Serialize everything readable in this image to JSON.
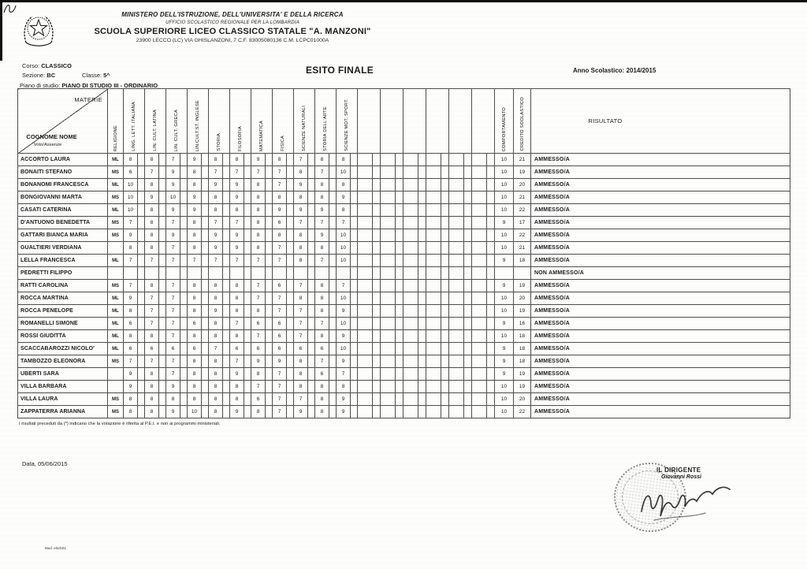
{
  "header": {
    "ministry": "MINISTERO DELL'ISTRUZIONE, DELL'UNIVERSITA' E DELLA RICERCA",
    "office": "UFFICIO SCOLASTICO REGIONALE PER LA LOMBARDIA",
    "school": "SCUOLA SUPERIORE LICEO CLASSICO STATALE \"A. MANZONI\"",
    "address": "23900 LECCO (LC) VIA GHISLANZONI, 7 C.F. 83005080136 C.M. LCPC01000A"
  },
  "info": {
    "corso_label": "Corso:",
    "corso": "CLASSICO",
    "sezione_label": "Sezione:",
    "sezione": "BC",
    "classe_label": "Classe:",
    "classe": "5^",
    "piano_label": "Piano di studio:",
    "piano": "PIANO DI STUDIO III - ORDINARIO",
    "title": "ESITO FINALE",
    "anno_label": "Anno Scolastico:",
    "anno": "2014/2015"
  },
  "table": {
    "corner": {
      "top": "MATERIE",
      "bottom": "COGNOME NOME",
      "sub": "Voto/Assenze"
    },
    "subjects": [
      "RELIGIONE",
      "LING. LETT. ITALIANA",
      "LIN. CULT. LATINA",
      "LIN. CULT. GRECA",
      "LIN.CULT.ST. INGLESE",
      "STORIA",
      "FILOSOFIA",
      "MATEMATICA",
      "FISICA",
      "SCIENZE NATURALI",
      "STORIA DELL'ARTE",
      "SCIENZE MOT. SPORT."
    ],
    "comportamento_header": "COMPORTAMENTO",
    "credito_header": "CREDITO SCOLASTICO",
    "risultato_header": "RISULTATO",
    "rows": [
      {
        "name": "ACCORTO LAURA",
        "religione": "ML",
        "grades": [
          "8",
          "8",
          "7",
          "9",
          "8",
          "8",
          "9",
          "8",
          "7",
          "8",
          "8"
        ],
        "comportamento": "10",
        "credito": "21",
        "risultato": "AMMESSO/A"
      },
      {
        "name": "BONAITI STEFANO",
        "religione": "MS",
        "grades": [
          "6",
          "7",
          "9",
          "8",
          "7",
          "7",
          "7",
          "7",
          "8",
          "7",
          "10"
        ],
        "comportamento": "10",
        "credito": "19",
        "risultato": "AMMESSO/A"
      },
      {
        "name": "BONANOMI FRANCESCA",
        "religione": "ML",
        "grades": [
          "10",
          "8",
          "9",
          "8",
          "9",
          "9",
          "8",
          "7",
          "9",
          "8",
          "8"
        ],
        "comportamento": "10",
        "credito": "20",
        "risultato": "AMMESSO/A"
      },
      {
        "name": "BONGIOVANNI MARTA",
        "religione": "MS",
        "grades": [
          "10",
          "9",
          "10",
          "9",
          "8",
          "9",
          "8",
          "8",
          "8",
          "8",
          "9"
        ],
        "comportamento": "10",
        "credito": "21",
        "risultato": "AMMESSO/A"
      },
      {
        "name": "CASATI CATERINA",
        "religione": "ML",
        "grades": [
          "10",
          "8",
          "9",
          "9",
          "8",
          "8",
          "8",
          "9",
          "9",
          "9",
          "8"
        ],
        "comportamento": "10",
        "credito": "22",
        "risultato": "AMMESSO/A"
      },
      {
        "name": "D'ANTUONO BENEDETTA",
        "religione": "MS",
        "grades": [
          "7",
          "8",
          "7",
          "8",
          "7",
          "7",
          "8",
          "6",
          "7",
          "7",
          "7"
        ],
        "comportamento": "9",
        "credito": "17",
        "risultato": "AMMESSO/A"
      },
      {
        "name": "GATTARI BIANCA MARIA",
        "religione": "MS",
        "grades": [
          "9",
          "8",
          "9",
          "8",
          "9",
          "9",
          "8",
          "8",
          "8",
          "9",
          "10"
        ],
        "comportamento": "10",
        "credito": "22",
        "risultato": "AMMESSO/A"
      },
      {
        "name": "GUALTIERI VERDIANA",
        "religione": "",
        "grades": [
          "8",
          "8",
          "7",
          "8",
          "9",
          "9",
          "8",
          "7",
          "8",
          "8",
          "10"
        ],
        "comportamento": "10",
        "credito": "21",
        "risultato": "AMMESSO/A"
      },
      {
        "name": "LELLA FRANCESCA",
        "religione": "ML",
        "grades": [
          "7",
          "7",
          "7",
          "7",
          "7",
          "7",
          "7",
          "7",
          "8",
          "7",
          "10"
        ],
        "comportamento": "9",
        "credito": "18",
        "risultato": "AMMESSO/A"
      },
      {
        "name": "PEDRETTI FILIPPO",
        "religione": "",
        "grades": [
          "",
          "",
          "",
          "",
          "",
          "",
          "",
          "",
          "",
          "",
          ""
        ],
        "comportamento": "",
        "credito": "",
        "risultato": "NON AMMESSO/A"
      },
      {
        "name": "RATTI CAROLINA",
        "religione": "MS",
        "grades": [
          "7",
          "8",
          "7",
          "8",
          "8",
          "8",
          "7",
          "6",
          "7",
          "8",
          "7"
        ],
        "comportamento": "9",
        "credito": "19",
        "risultato": "AMMESSO/A"
      },
      {
        "name": "ROCCA MARTINA",
        "religione": "ML",
        "grades": [
          "9",
          "7",
          "7",
          "8",
          "8",
          "8",
          "7",
          "7",
          "8",
          "8",
          "10"
        ],
        "comportamento": "10",
        "credito": "20",
        "risultato": "AMMESSO/A"
      },
      {
        "name": "ROCCA PENELOPE",
        "religione": "ML",
        "grades": [
          "8",
          "7",
          "7",
          "8",
          "9",
          "8",
          "8",
          "7",
          "7",
          "8",
          "9"
        ],
        "comportamento": "10",
        "credito": "19",
        "risultato": "AMMESSO/A"
      },
      {
        "name": "ROMANELLI SIMONE",
        "religione": "ML",
        "grades": [
          "6",
          "7",
          "7",
          "6",
          "8",
          "7",
          "6",
          "6",
          "7",
          "7",
          "10"
        ],
        "comportamento": "9",
        "credito": "16",
        "risultato": "AMMESSO/A"
      },
      {
        "name": "ROSSI GIUDITTA",
        "religione": "ML",
        "grades": [
          "8",
          "8",
          "7",
          "8",
          "8",
          "8",
          "7",
          "6",
          "7",
          "8",
          "9"
        ],
        "comportamento": "10",
        "credito": "18",
        "risultato": "AMMESSO/A"
      },
      {
        "name": "SCACCABAROZZI NICOLO'",
        "religione": "ML",
        "grades": [
          "6",
          "6",
          "6",
          "6",
          "7",
          "6",
          "6",
          "6",
          "6",
          "6",
          "10"
        ],
        "comportamento": "9",
        "credito": "18",
        "risultato": "AMMESSO/A"
      },
      {
        "name": "TAMBOZZO ELEONORA",
        "religione": "MS",
        "grades": [
          "7",
          "7",
          "7",
          "8",
          "8",
          "7",
          "9",
          "9",
          "8",
          "7",
          "9"
        ],
        "comportamento": "9",
        "credito": "18",
        "risultato": "AMMESSO/A"
      },
      {
        "name": "UBERTI SARA",
        "religione": "",
        "grades": [
          "9",
          "8",
          "7",
          "8",
          "8",
          "9",
          "8",
          "7",
          "8",
          "6",
          "7"
        ],
        "comportamento": "9",
        "credito": "19",
        "risultato": "AMMESSO/A"
      },
      {
        "name": "VILLA BARBARA",
        "religione": "",
        "grades": [
          "9",
          "8",
          "9",
          "8",
          "8",
          "8",
          "7",
          "7",
          "8",
          "8",
          "8"
        ],
        "comportamento": "10",
        "credito": "19",
        "risultato": "AMMESSO/A"
      },
      {
        "name": "VILLA LAURA",
        "religione": "MS",
        "grades": [
          "8",
          "8",
          "8",
          "8",
          "8",
          "8",
          "6",
          "7",
          "7",
          "8",
          "9"
        ],
        "comportamento": "10",
        "credito": "20",
        "risultato": "AMMESSO/A"
      },
      {
        "name": "ZAPPATERRA ARIANNA",
        "religione": "MS",
        "grades": [
          "8",
          "8",
          "9",
          "10",
          "8",
          "9",
          "8",
          "7",
          "9",
          "8",
          "9"
        ],
        "comportamento": "10",
        "credito": "22",
        "risultato": "AMMESSO/A"
      }
    ]
  },
  "footnote": "I risultati preceduti da (*) indicano che la votazione è riferita al P.E.I. e non ai programmi ministeriali.",
  "date_line": "Data, 05/06/2015",
  "signature": {
    "role": "IL DIRIGENTE",
    "name": "Giovanni Rossi"
  },
  "footer_code": "Mod. elscb01"
}
